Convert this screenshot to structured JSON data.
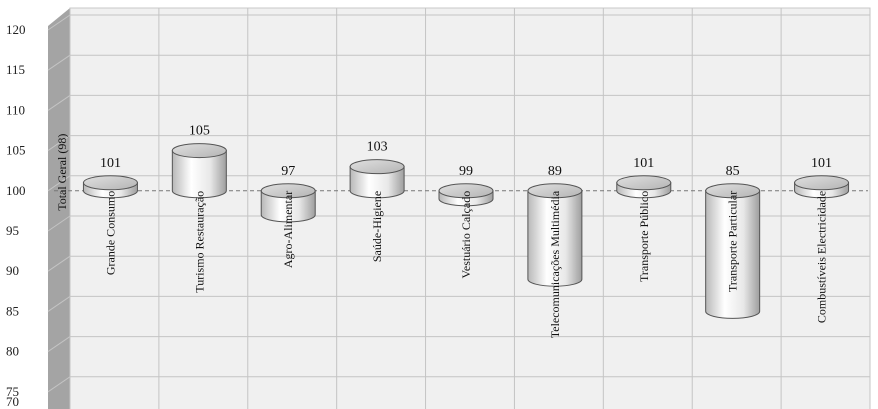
{
  "chart_data": {
    "type": "bar",
    "style": "3d-cylinder-from-baseline",
    "baseline": 100,
    "baseline_label": "Total Geral (98)",
    "categories": [
      "Grande Consumo",
      "Turismo Restauração",
      "Agro-Alimentar",
      "Saúde-Higiene",
      "Vestuário Calçado",
      "Telecomunicações Multimédia",
      "Transporte Público",
      "Transporte Particular",
      "Combustíveis Electricidade"
    ],
    "values": [
      101,
      105,
      97,
      103,
      99,
      89,
      101,
      85,
      101
    ],
    "value_labels": [
      "101",
      "105",
      "97",
      "103",
      "99",
      "89",
      "101",
      "85",
      "101"
    ],
    "y_ticks": [
      "70",
      "75",
      "80",
      "85",
      "90",
      "95",
      "100",
      "105",
      "110",
      "115",
      "120"
    ],
    "ylim": [
      70,
      120
    ],
    "grid": true,
    "legend": "none",
    "colors": {
      "plot_bg": "#f0f0f0",
      "wall_side": "#a0a0a0",
      "floor": "#9a9a9a",
      "grid": "#c4c4c4",
      "cylinder_top": "#c8c8c8",
      "cylinder_body_light": "#ffffff",
      "cylinder_body_dark": "#a8a8a8"
    }
  }
}
